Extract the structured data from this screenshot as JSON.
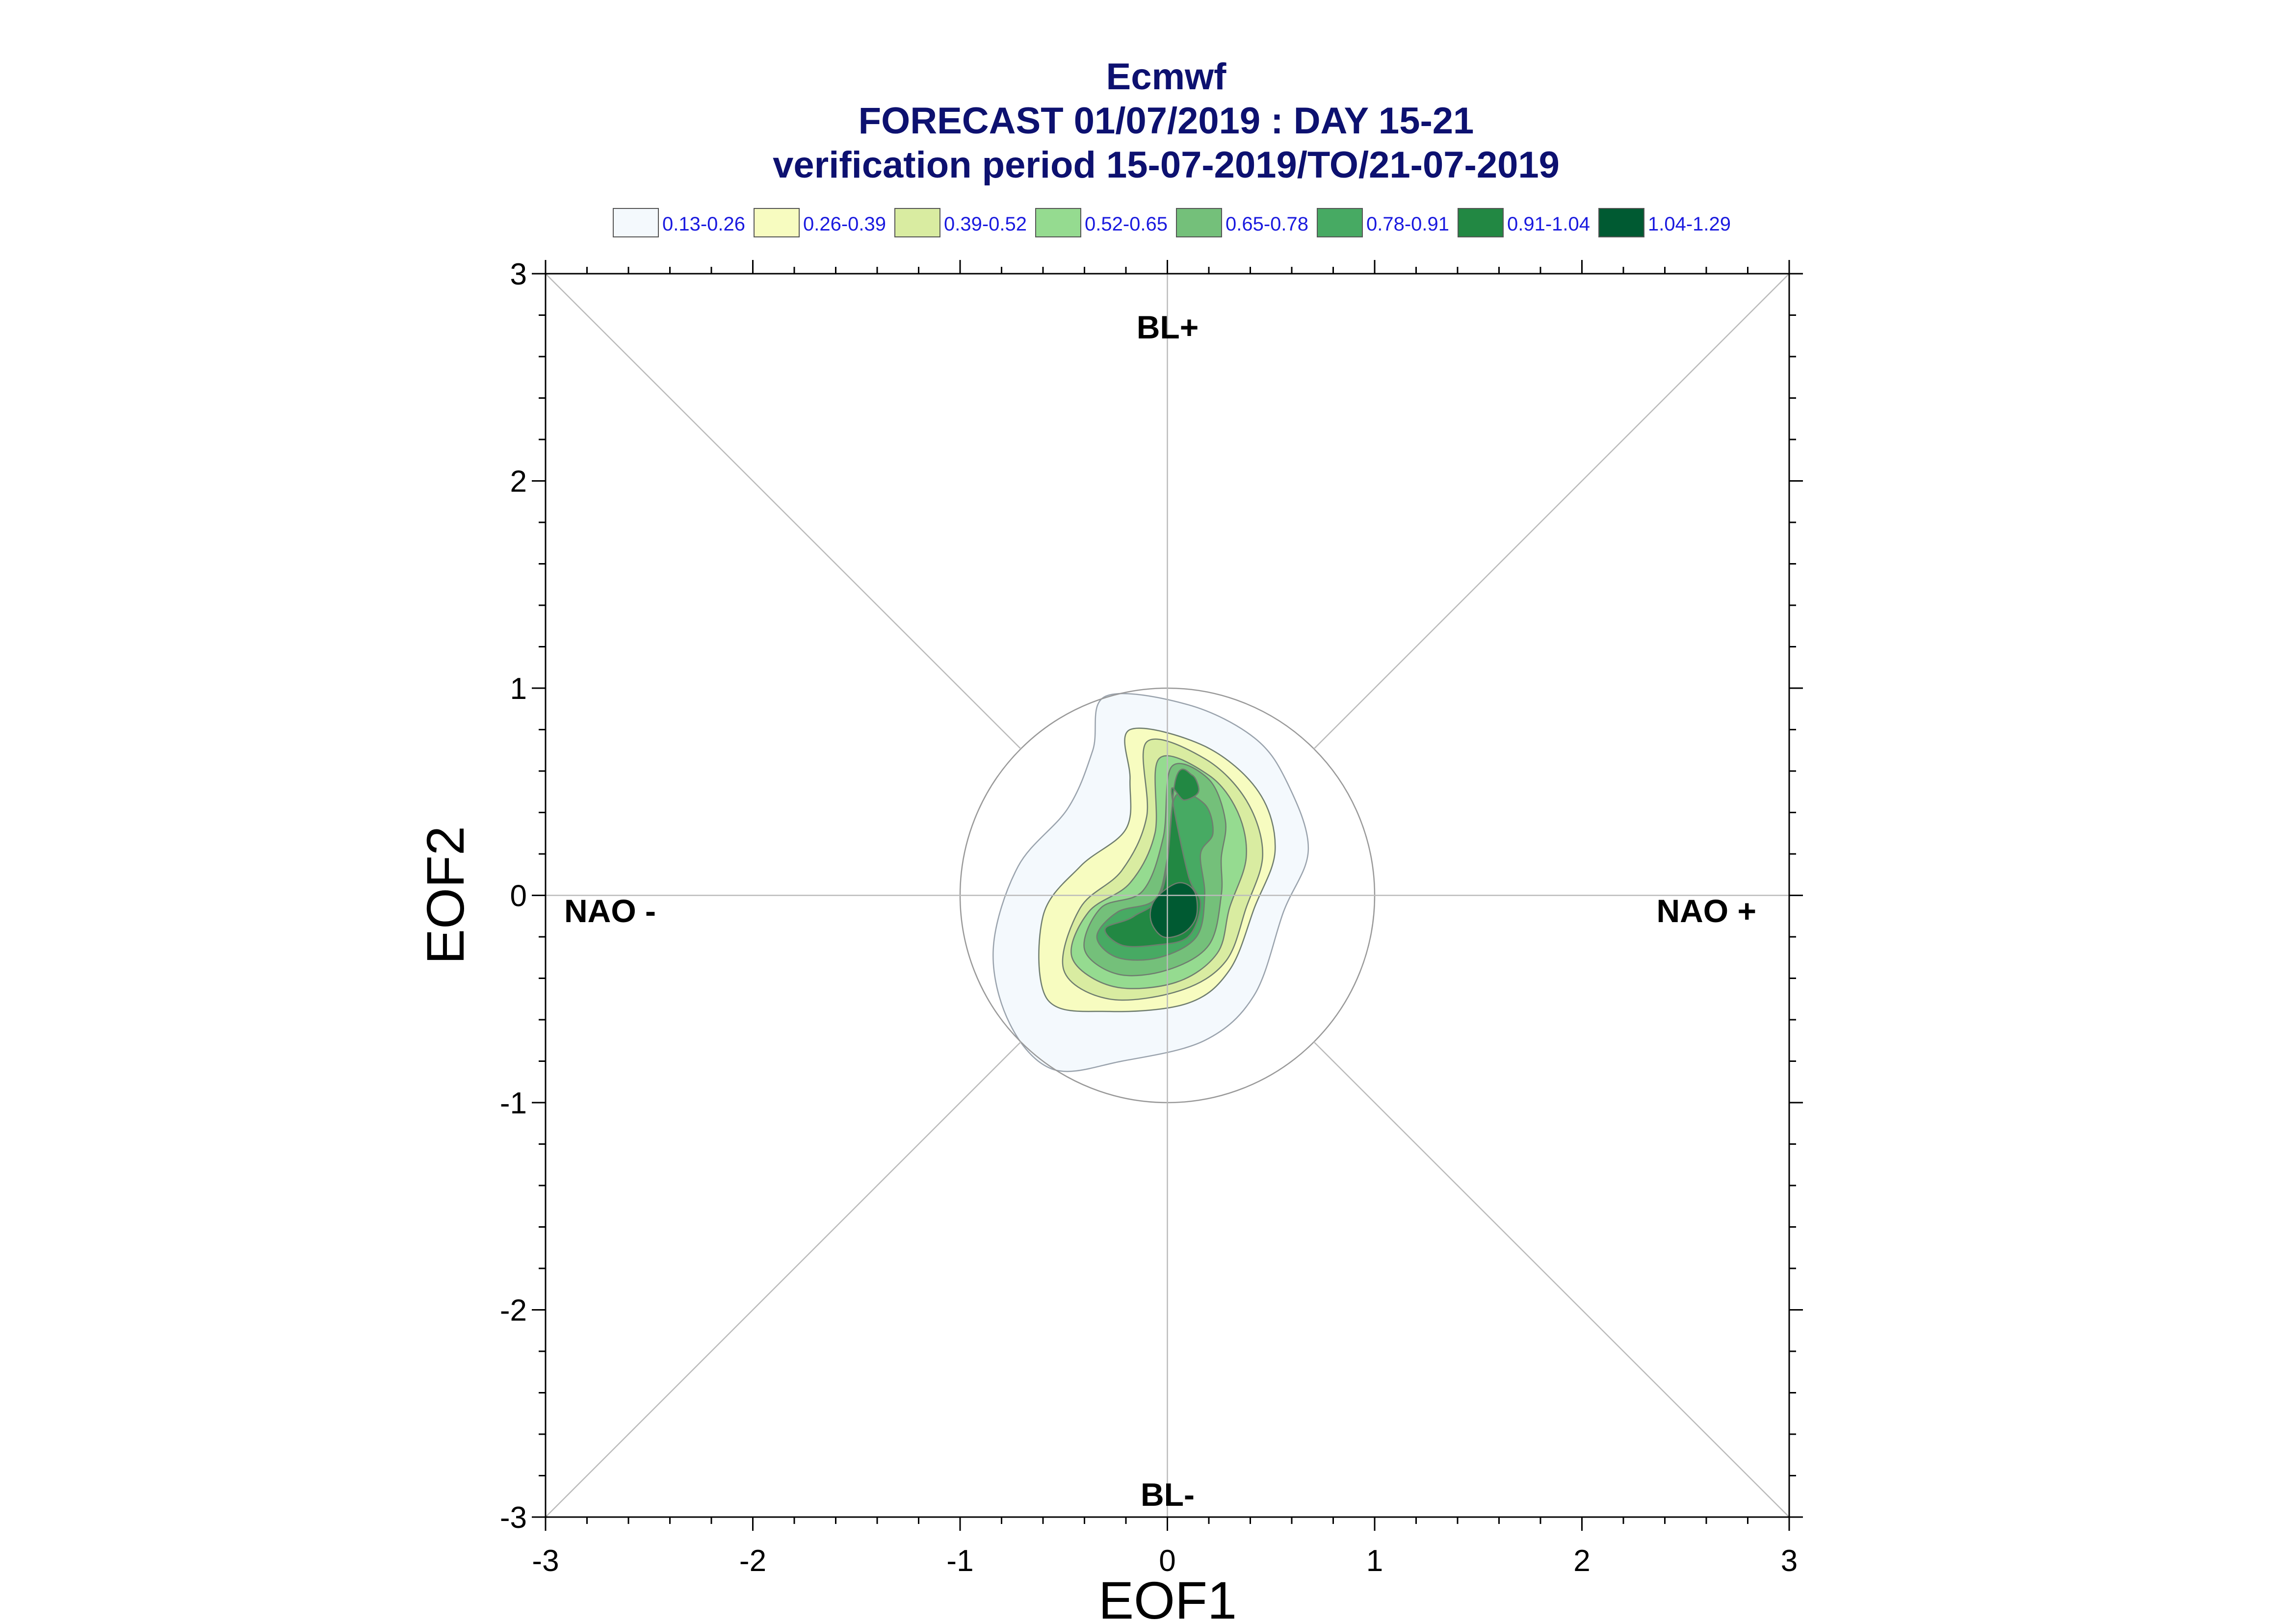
{
  "chart_data": {
    "type": "contour",
    "title_lines": [
      "Ecmwf",
      "FORECAST 01/07/2019 : DAY 15-21",
      "verification period 15-07-2019/TO/21-07-2019"
    ],
    "xlabel": "EOF1",
    "ylabel": "EOF2",
    "xlim": [
      -3,
      3
    ],
    "ylim": [
      -3,
      3
    ],
    "x_ticks": [
      "-3",
      "-2",
      "-1",
      "0",
      "1",
      "2",
      "3"
    ],
    "y_ticks": [
      "3",
      "2",
      "1",
      "0",
      "-1",
      "-2",
      "-3"
    ],
    "reference_circle_radius": 1,
    "regime_labels": {
      "top": "BL+",
      "bottom": "BL-",
      "left": "NAO -",
      "right": "NAO +"
    },
    "legend": [
      {
        "label": "0.13-0.26",
        "color": "#f4f9fd"
      },
      {
        "label": "0.26-0.39",
        "color": "#f7fcc0"
      },
      {
        "label": "0.39-0.52",
        "color": "#d9eca1"
      },
      {
        "label": "0.52-0.65",
        "color": "#95db90"
      },
      {
        "label": "0.65-0.78",
        "color": "#74c07a"
      },
      {
        "label": "0.78-0.91",
        "color": "#47aa63"
      },
      {
        "label": "0.91-1.04",
        "color": "#228843"
      },
      {
        "label": "1.04-1.29",
        "color": "#005a32"
      }
    ],
    "density_peaks": [
      {
        "x": 0.05,
        "y": -0.1,
        "max_density": 1.29
      },
      {
        "x": 0.1,
        "y": 0.55,
        "max_density": 0.91
      }
    ]
  }
}
